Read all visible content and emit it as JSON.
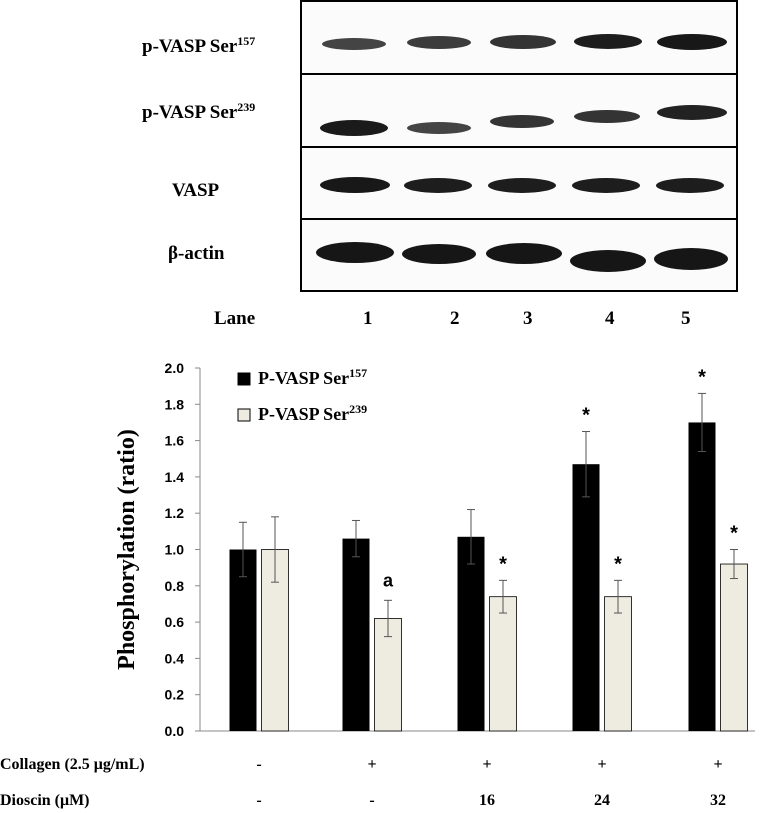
{
  "blot": {
    "row_labels": [
      {
        "main": "p-VASP Ser",
        "sup": "157"
      },
      {
        "main": "p-VASP Ser",
        "sup": "239"
      },
      {
        "main": "VASP",
        "sup": ""
      },
      {
        "main": "β-actin",
        "sup": ""
      }
    ],
    "lane_label": "Lane",
    "lanes": [
      "1",
      "2",
      "3",
      "4",
      "5"
    ]
  },
  "chart_data": {
    "type": "bar",
    "ylabel": "Phosphorylation (ratio)",
    "ylim": [
      0,
      2.0
    ],
    "yticks": [
      "0.0",
      "0.2",
      "0.4",
      "0.6",
      "0.8",
      "1.0",
      "1.2",
      "1.4",
      "1.6",
      "1.8",
      "2.0"
    ],
    "grid": false,
    "legend_position": "top-left",
    "series": [
      {
        "name": "P-VASP Ser",
        "sup": "157",
        "color": "#000000",
        "values": [
          1.0,
          1.06,
          1.07,
          1.47,
          1.7
        ],
        "errors": [
          0.15,
          0.1,
          0.15,
          0.18,
          0.16
        ],
        "annotations": [
          "",
          "",
          "",
          "*",
          "*"
        ]
      },
      {
        "name": "P-VASP Ser",
        "sup": "239",
        "color": "#eeece1",
        "values": [
          1.0,
          0.62,
          0.74,
          0.74,
          0.92
        ],
        "errors": [
          0.18,
          0.1,
          0.09,
          0.09,
          0.08
        ],
        "annotations": [
          "",
          "a",
          "*",
          "*",
          "*"
        ]
      }
    ]
  },
  "conditions": {
    "collagen_label": "Collagen  (2.5 μg/mL)",
    "collagen": [
      "-",
      "+",
      "+",
      "+",
      "+"
    ],
    "dioscin_label": "Dioscin (μM)",
    "dioscin": [
      "-",
      "-",
      "16",
      "24",
      "32"
    ]
  }
}
